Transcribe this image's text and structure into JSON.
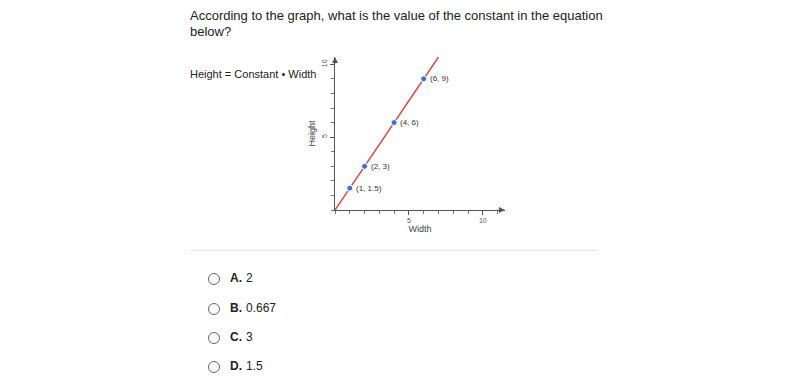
{
  "question_lines": [
    "According to the graph, what is the value of the constant in the equation",
    "below?"
  ],
  "equation": "Height = Constant • Width",
  "chart_data": {
    "type": "scatter",
    "x_label": "Width",
    "y_label": "Height",
    "xlim": [
      0,
      11.5
    ],
    "ylim": [
      0,
      10.5
    ],
    "xticks": [
      5,
      10
    ],
    "yticks": [
      5,
      10
    ],
    "grid": false,
    "series": [
      {
        "type": "line",
        "color": "#e0473a",
        "x": [
          0,
          7
        ],
        "values": [
          0,
          10.5
        ]
      },
      {
        "type": "scatter",
        "color": "#3d6fd8",
        "marker": "circle",
        "x": [
          1,
          2,
          4,
          6
        ],
        "values": [
          1.5,
          3,
          6,
          9
        ],
        "point_labels": [
          "(1, 1.5)",
          "(2, 3)",
          "(4, 6)",
          "(6, 9)"
        ]
      }
    ]
  },
  "options": [
    {
      "letter": "A.",
      "text": "2"
    },
    {
      "letter": "B.",
      "text": "0.667"
    },
    {
      "letter": "C.",
      "text": "3"
    },
    {
      "letter": "D.",
      "text": "1.5"
    }
  ]
}
